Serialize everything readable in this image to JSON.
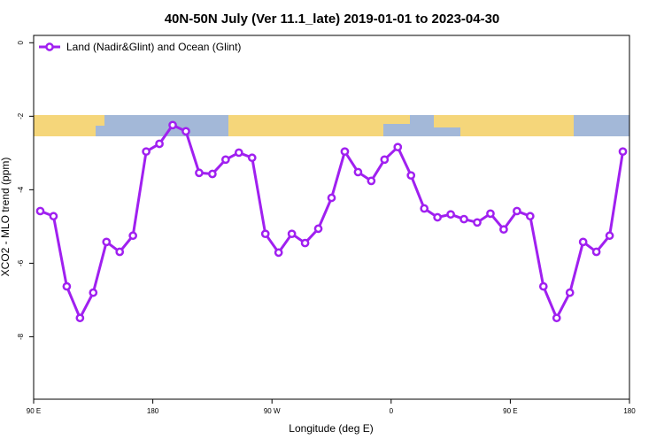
{
  "chart_data": {
    "type": "line",
    "title": "40N-50N July (Ver 11.1_late)   2019-01-01 to 2023-04-30",
    "x_label": "Longitude (deg E)",
    "y_label": "XCO2 - MLO trend (ppm)",
    "x": [
      95,
      105,
      115,
      125,
      135,
      145,
      155,
      165,
      175,
      185,
      195,
      205,
      215,
      225,
      235,
      245,
      255,
      265,
      275,
      285,
      295,
      305,
      315,
      325,
      335,
      345,
      355,
      365,
      375,
      385,
      395,
      405,
      415,
      425,
      435,
      445,
      455,
      465,
      475,
      485,
      495,
      505,
      515,
      525,
      535
    ],
    "series": [
      {
        "name": "Land (Nadir&Glint) and Ocean (Glint)",
        "color": "#a020f0",
        "values": [
          -4.58,
          -4.72,
          -6.63,
          -7.49,
          -6.8,
          -5.42,
          -5.69,
          -5.25,
          -2.96,
          -2.75,
          -2.24,
          -2.41,
          -3.54,
          -3.57,
          -3.18,
          -2.99,
          -3.13,
          -5.2,
          -5.71,
          -5.2,
          -5.45,
          -5.06,
          -4.22,
          -2.96,
          -3.52,
          -3.76,
          -3.18,
          -2.84,
          -3.61,
          -4.51,
          -4.75,
          -4.67,
          -4.8,
          -4.89,
          -4.65,
          -5.08,
          -4.58,
          -4.72,
          -6.63,
          -7.49,
          -6.8,
          -5.42,
          -5.69,
          -5.25,
          -2.96
        ]
      }
    ],
    "xlim": [
      90,
      540
    ],
    "ylim": [
      -9.7,
      0.2
    ],
    "xticks": [
      {
        "value": 90,
        "label": "90 E"
      },
      {
        "value": 180,
        "label": "180"
      },
      {
        "value": 270,
        "label": "90 W"
      },
      {
        "value": 360,
        "label": "0"
      },
      {
        "value": 450,
        "label": "90 E"
      },
      {
        "value": 540,
        "label": "180"
      }
    ],
    "yticks": [
      0,
      -2,
      -4,
      -6,
      -8
    ],
    "legend": "top-left"
  }
}
